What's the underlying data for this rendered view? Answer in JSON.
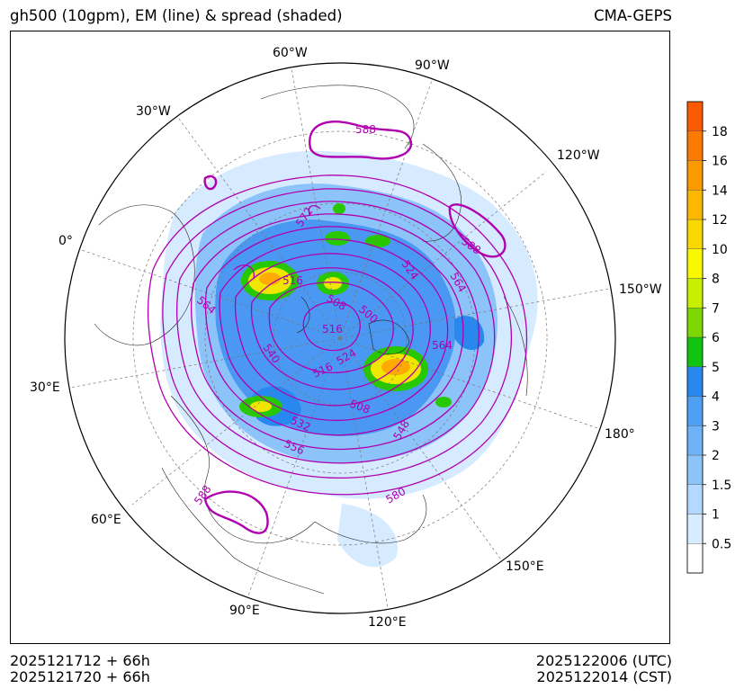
{
  "header": {
    "title_left": "gh500 (10gpm), EM (line) & spread (shaded)",
    "title_right": "CMA-GEPS"
  },
  "footer": {
    "init_utc": "2025121712 + 66h",
    "init_cst": "2025121720 + 66h",
    "valid_utc": "2025122006 (UTC)",
    "valid_cst": "2025122014 (CST)"
  },
  "map": {
    "projection": "north-polar-stereographic",
    "longitude_labels": [
      "60°W",
      "90°W",
      "30°W",
      "120°W",
      "0°",
      "150°W",
      "30°E",
      "180°",
      "60°E",
      "150°E",
      "90°E",
      "120°E"
    ],
    "contour_labels": [
      "588",
      "572",
      "516",
      "508",
      "500",
      "524",
      "564",
      "516",
      "524",
      "516",
      "508",
      "540",
      "532",
      "556",
      "548",
      "564",
      "588",
      "580",
      "588",
      "564"
    ],
    "colors": {
      "contour": "#b000b0",
      "spread_light": "#d6ebff",
      "spread_mid": "#8cc4fa",
      "spread_dark": "#3c8ff0",
      "spread_green": "#28c800",
      "spread_yellow": "#f0e600",
      "spread_orange": "#ffaa00"
    }
  },
  "colorbar": {
    "ticks": [
      "18",
      "16",
      "14",
      "12",
      "10",
      "8",
      "7",
      "6",
      "5",
      "4",
      "3",
      "2",
      "1.5",
      "1",
      "0.5"
    ],
    "colors": [
      "#ffffff",
      "#d8ecff",
      "#b4d8ff",
      "#8cc4fa",
      "#6eb2f8",
      "#4ea0f4",
      "#2888f0",
      "#12c412",
      "#7cd800",
      "#c8ee00",
      "#f8f800",
      "#f8d800",
      "#fcb800",
      "#fc9800",
      "#fc7a00",
      "#fc5a00"
    ]
  }
}
